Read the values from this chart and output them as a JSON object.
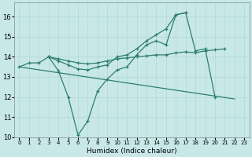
{
  "xlabel": "Humidex (Indice chaleur)",
  "bg_color": "#c8e8e8",
  "grid_color": "#b0d8d8",
  "line_color": "#2e7d6e",
  "xlim": [
    -0.5,
    23.5
  ],
  "ylim": [
    10,
    16.7
  ],
  "yticks": [
    10,
    11,
    12,
    13,
    14,
    15,
    16
  ],
  "xticks": [
    0,
    1,
    2,
    3,
    4,
    5,
    6,
    7,
    8,
    9,
    10,
    11,
    12,
    13,
    14,
    15,
    16,
    17,
    18,
    19,
    20,
    21,
    22,
    23
  ],
  "line1_x": [
    0,
    1,
    2,
    3,
    4,
    5,
    6,
    7,
    8,
    9,
    10,
    11,
    12,
    13,
    14,
    15,
    16,
    17,
    18,
    19,
    20
  ],
  "line1_y": [
    13.5,
    13.7,
    13.7,
    14.0,
    13.3,
    12.0,
    10.1,
    10.8,
    12.3,
    12.9,
    13.35,
    13.5,
    14.1,
    14.6,
    14.8,
    14.6,
    16.1,
    16.2,
    14.3,
    14.4,
    12.0
  ],
  "line2_x": [
    0,
    22
  ],
  "line2_y": [
    13.5,
    11.9
  ],
  "line3_x": [
    3,
    4,
    5,
    6,
    7,
    8,
    9,
    10,
    11,
    12,
    13,
    14,
    15,
    16,
    17
  ],
  "line3_y": [
    14.0,
    13.8,
    13.6,
    13.4,
    13.35,
    13.5,
    13.6,
    14.0,
    14.1,
    14.4,
    14.8,
    15.1,
    15.4,
    16.1,
    16.2
  ],
  "line4_x": [
    3,
    4,
    5,
    6,
    7,
    8,
    9,
    10,
    11,
    12,
    13,
    14,
    15,
    16,
    17,
    18,
    19,
    20,
    21
  ],
  "line4_y": [
    14.0,
    13.9,
    13.8,
    13.7,
    13.65,
    13.7,
    13.8,
    13.9,
    13.95,
    14.0,
    14.05,
    14.1,
    14.1,
    14.2,
    14.25,
    14.2,
    14.3,
    14.35,
    14.4
  ]
}
